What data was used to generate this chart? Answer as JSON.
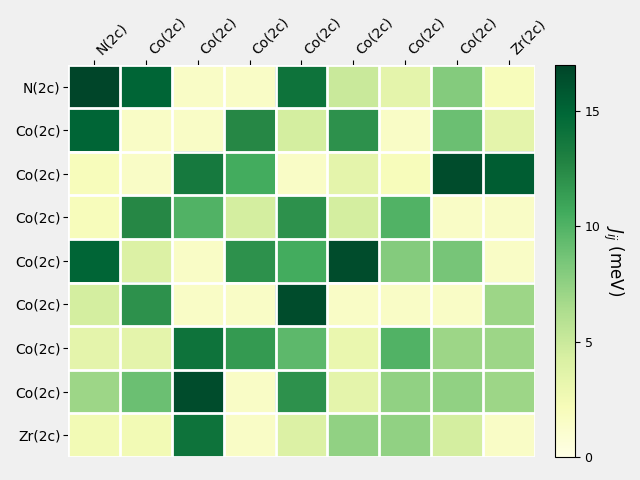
{
  "labels": [
    "N(2c)",
    "Co(2c)",
    "Co(2c)",
    "Co(2c)",
    "Co(2c)",
    "Co(2c)",
    "Co(2c)",
    "Co(2c)",
    "Zr(2c)"
  ],
  "matrix": [
    [
      17.0,
      15.0,
      1.5,
      1.5,
      14.0,
      5.0,
      3.5,
      8.0,
      2.0
    ],
    [
      15.0,
      1.5,
      1.5,
      12.5,
      4.5,
      12.0,
      1.5,
      9.0,
      3.5
    ],
    [
      2.0,
      1.5,
      13.5,
      10.5,
      1.5,
      3.5,
      2.0,
      16.5,
      15.5
    ],
    [
      2.0,
      12.5,
      10.0,
      4.5,
      12.0,
      4.5,
      10.0,
      1.5,
      1.5
    ],
    [
      15.0,
      4.0,
      1.5,
      12.0,
      10.5,
      16.5,
      8.0,
      8.5,
      1.5
    ],
    [
      4.5,
      12.0,
      1.5,
      1.5,
      16.5,
      1.5,
      1.5,
      1.5,
      7.0
    ],
    [
      3.5,
      3.5,
      14.0,
      11.5,
      9.5,
      3.0,
      10.0,
      7.0,
      7.0
    ],
    [
      7.0,
      9.0,
      16.5,
      1.5,
      12.0,
      3.5,
      7.5,
      7.5,
      7.0
    ],
    [
      2.5,
      2.5,
      14.0,
      1.5,
      4.0,
      7.5,
      7.5,
      4.5,
      1.5
    ]
  ],
  "vmin": 0,
  "vmax": 17,
  "cmap": "YlGn",
  "colorbar_label": "$J_{ij}$ (meV)",
  "colorbar_ticks": [
    0,
    5,
    10,
    15
  ],
  "figsize": [
    6.4,
    4.8
  ],
  "dpi": 100,
  "bg_color": "#f0f0f0"
}
